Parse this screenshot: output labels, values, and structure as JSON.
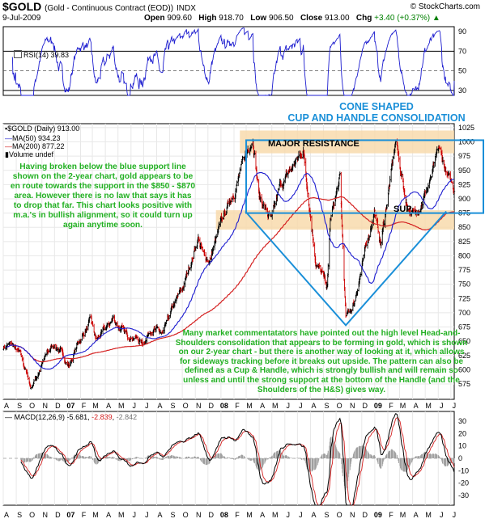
{
  "header": {
    "symbol": "$GOLD",
    "description": "(Gold - Continuous Contract (EOD))",
    "exchange": "INDX",
    "date": "9-Jul-2009",
    "copyright": "© StockCharts.com",
    "open_label": "Open",
    "open": "909.60",
    "high_label": "High",
    "high": "918.70",
    "low_label": "Low",
    "low": "906.50",
    "close_label": "Close",
    "close": "913.00",
    "chg_label": "Chg",
    "chg": "+3.40 (+0.37%)",
    "chg_arrow": "▲"
  },
  "legends": {
    "rsi": "RSI(14) 39.83",
    "price": "$GOLD (Daily) 913.00",
    "ma50": "MA(50) 934.23",
    "ma200": "MA(200) 877.22",
    "volume": "Volume undef",
    "macd": "MACD(12,26,9) -5.681, -2.839, -2.842",
    "macd_a": "MACD(12,26,9)",
    "macd_b": "-5.681",
    "macd_c": "-2.839",
    "macd_d": "-2.842"
  },
  "annotations": {
    "cone_line1": "CONE SHAPED",
    "cone_line2": "CUP AND HANDLE CONSOLIDATION",
    "major_resistance": "MAJOR RESISTANCE",
    "support": "SUP.",
    "left_text": "Having broken below the blue support line shown on the 2-year chart, gold appears to be en route towards the support in the $850 - $870 area. However there is no law that says it has to drop that far. This chart looks positive with m.a.'s in bullish alignment, so it could turn up again anytime soon.",
    "bottom_text": "Many market commentatators have pointed out the high level Head-and-Shoulders consolidation that appears to be forming in gold, which is shown on our 2-year chart - but there is another way of looking at it, which allows for sideways tracking before it breaks out upside. The pattern can also be defined as a Cup & Handle, which is strongly bullish and will remain so unless and until the strong support at the bottom of the Handle (and the Shoulders of the H&S) gives way."
  },
  "colors": {
    "ma50": "#1c1ccf",
    "ma200": "#d42020",
    "annotation_text": "#22b022",
    "cone": "#1a8fd8",
    "resistance_band": "#f8d8a8",
    "up_bar": "#000000",
    "down_bar": "#cc0000",
    "rsi_line": "#1c1ccf",
    "macd_hist": "#a0a0a0"
  },
  "chart_data": {
    "type": "line",
    "series_note": "Daily OHLC bars, Aug 2006 to Jul 2009",
    "x_ticks": [
      "A",
      "S",
      "O",
      "N",
      "D",
      "07",
      "F",
      "M",
      "A",
      "M",
      "J",
      "J",
      "A",
      "S",
      "O",
      "N",
      "D",
      "08",
      "F",
      "M",
      "A",
      "M",
      "J",
      "J",
      "A",
      "S",
      "O",
      "N",
      "D",
      "09",
      "F",
      "M",
      "A",
      "M",
      "J",
      "J"
    ],
    "price": {
      "ylim": [
        548,
        1032
      ],
      "y_ticks": [
        1025,
        1000,
        975,
        950,
        925,
        900,
        875,
        850,
        825,
        800,
        775,
        750,
        725,
        700,
        675,
        650,
        625,
        600,
        575
      ],
      "anchors": [
        [
          "2006-08-01",
          640
        ],
        [
          "2006-08-20",
          645
        ],
        [
          "2006-09-10",
          625
        ],
        [
          "2006-09-25",
          595
        ],
        [
          "2006-10-06",
          568
        ],
        [
          "2006-10-20",
          590
        ],
        [
          "2006-11-15",
          630
        ],
        [
          "2006-12-01",
          645
        ],
        [
          "2006-12-20",
          625
        ],
        [
          "2007-01-05",
          608
        ],
        [
          "2007-01-25",
          645
        ],
        [
          "2007-02-25",
          685
        ],
        [
          "2007-03-10",
          650
        ],
        [
          "2007-04-01",
          670
        ],
        [
          "2007-04-20",
          690
        ],
        [
          "2007-05-20",
          660
        ],
        [
          "2007-06-10",
          660
        ],
        [
          "2007-06-28",
          645
        ],
        [
          "2007-07-20",
          675
        ],
        [
          "2007-08-16",
          660
        ],
        [
          "2007-09-10",
          710
        ],
        [
          "2007-10-01",
          740
        ],
        [
          "2007-11-08",
          832
        ],
        [
          "2007-11-20",
          800
        ],
        [
          "2007-12-05",
          792
        ],
        [
          "2008-01-02",
          857
        ],
        [
          "2008-02-01",
          915
        ],
        [
          "2008-03-17",
          1012
        ],
        [
          "2008-04-01",
          905
        ],
        [
          "2008-05-01",
          860
        ],
        [
          "2008-05-20",
          920
        ],
        [
          "2008-07-15",
          985
        ],
        [
          "2008-08-14",
          790
        ],
        [
          "2008-09-10",
          745
        ],
        [
          "2008-09-17",
          860
        ],
        [
          "2008-10-10",
          935
        ],
        [
          "2008-10-24",
          690
        ],
        [
          "2008-11-12",
          715
        ],
        [
          "2008-12-01",
          780
        ],
        [
          "2008-12-31",
          880
        ],
        [
          "2009-01-15",
          820
        ],
        [
          "2009-02-20",
          1000
        ],
        [
          "2009-03-18",
          890
        ],
        [
          "2009-04-06",
          870
        ],
        [
          "2009-05-15",
          935
        ],
        [
          "2009-06-03",
          985
        ],
        [
          "2009-06-25",
          935
        ],
        [
          "2009-07-09",
          913
        ]
      ],
      "ma50_ends": [
        [
          "2006-08-01",
          620
        ],
        [
          "2009-07-09",
          934.23
        ]
      ],
      "ma200_ends": [
        [
          "2006-08-01",
          610
        ],
        [
          "2009-07-09",
          877.22
        ]
      ]
    },
    "rsi": {
      "ylim": [
        25,
        95
      ],
      "y_ticks": [
        90,
        70,
        50,
        30
      ],
      "last": 39.83
    },
    "macd": {
      "ylim": [
        -38,
        38
      ],
      "y_ticks": [
        30,
        20,
        10,
        0,
        -10,
        -20,
        -30
      ],
      "macd": -5.681,
      "signal": -2.839,
      "histogram": -2.842
    }
  }
}
